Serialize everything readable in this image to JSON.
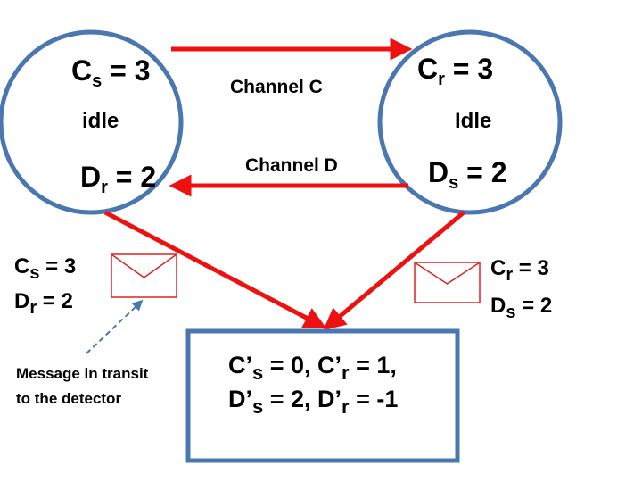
{
  "colors": {
    "node_stroke": "#4a77b0",
    "arrow": "#ee1111",
    "envelope": "#dd2222",
    "note_arrow": "#4a77b0"
  },
  "left_node": {
    "c_var": "C",
    "c_sub": "s",
    "c_val": " = 3",
    "state": "idle",
    "d_var": "D",
    "d_sub": "r",
    "d_val": " = 2"
  },
  "right_node": {
    "c_var": "C",
    "c_sub": "r",
    "c_val": " = 3",
    "state": "Idle",
    "d_var": "D",
    "d_sub": "s",
    "d_val": " = 2"
  },
  "channels": {
    "c_label": "Channel C",
    "d_label": "Channel D"
  },
  "left_message": {
    "line1_var": "C",
    "line1_sub": "s",
    "line1_val": " = 3",
    "line2_var": "D",
    "line2_sub": "r",
    "line2_val": " = 2"
  },
  "right_message": {
    "line1_var": "C",
    "line1_sub": "r",
    "line1_val": " = 3",
    "line2_var": "D",
    "line2_sub": "s",
    "line2_val": " = 2"
  },
  "note": {
    "line1": "Message in transit",
    "line2": "to the detector"
  },
  "detector": {
    "l1a_var": "C’",
    "l1a_sub": "s",
    "l1a_val": " = 0, ",
    "l1b_var": "C’",
    "l1b_sub": "r",
    "l1b_val": " = 1,",
    "l2a_var": "D’",
    "l2a_sub": "s",
    "l2a_val": " = 2, ",
    "l2b_var": "D’",
    "l2b_sub": "r",
    "l2b_val": " = -1"
  }
}
